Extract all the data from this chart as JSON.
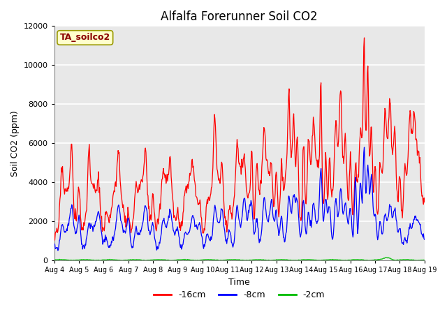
{
  "title": "Alfalfa Forerunner Soil CO2",
  "ylabel": "Soil CO2 (ppm)",
  "xlabel": "Time",
  "annotation": "TA_soilco2",
  "annotation_color": "#8B0000",
  "annotation_bg": "#FFFFCC",
  "annotation_edge": "#999900",
  "ylim": [
    0,
    12000
  ],
  "yticks": [
    0,
    2000,
    4000,
    6000,
    8000,
    10000,
    12000
  ],
  "legend_labels": [
    "-16cm",
    "-8cm",
    "-2cm"
  ],
  "line_colors": [
    "#FF0000",
    "#0000FF",
    "#00BB00"
  ],
  "bg_color": "#E8E8E8",
  "grid_color": "#FFFFFF",
  "title_fontsize": 12,
  "label_fontsize": 9,
  "tick_fontsize": 8,
  "xtick_labels": [
    "Aug 4",
    "Aug 5",
    "Aug 6",
    "Aug 7",
    "Aug 8",
    "Aug 9",
    "Aug 10",
    "Aug 11",
    "Aug 12",
    "Aug 13",
    "Aug 14",
    "Aug 15",
    "Aug 16",
    "Aug 17",
    "Aug 18",
    "Aug 19"
  ]
}
